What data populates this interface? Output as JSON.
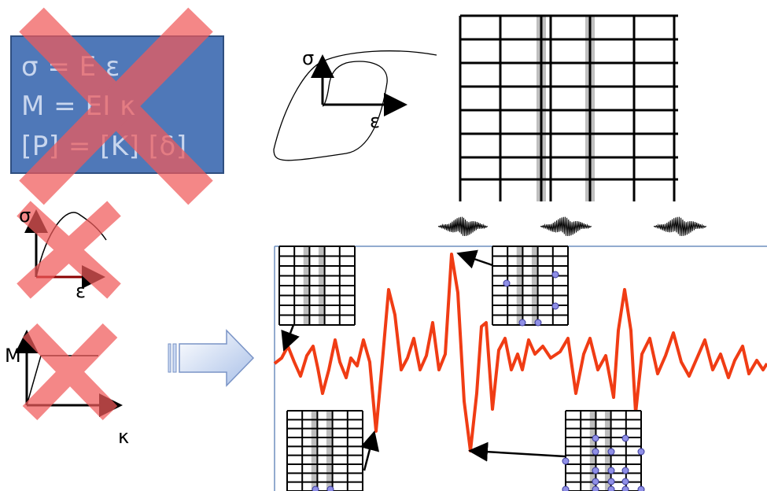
{
  "equations": {
    "line1": "σ = E ε",
    "line2": "M = EI κ",
    "line3": "[P] = [K] [δ]"
  },
  "axes": {
    "hysteresis_y": "σ",
    "hysteresis_x": "ε",
    "material_y": "σ",
    "material_x": "ε",
    "moment_y": "M",
    "moment_x": "κ"
  },
  "colors": {
    "equation_box": "#4f78b8",
    "cross_mark": "#f05a5a",
    "response_curve": "#f03c14",
    "plastic_hinge": "#8f8fe6",
    "arrow_fill": "#c9d8f2"
  },
  "icons": {
    "cross": "cross-out-icon",
    "arrow": "block-arrow-right-icon",
    "ground_motion": "seismogram-icon"
  }
}
